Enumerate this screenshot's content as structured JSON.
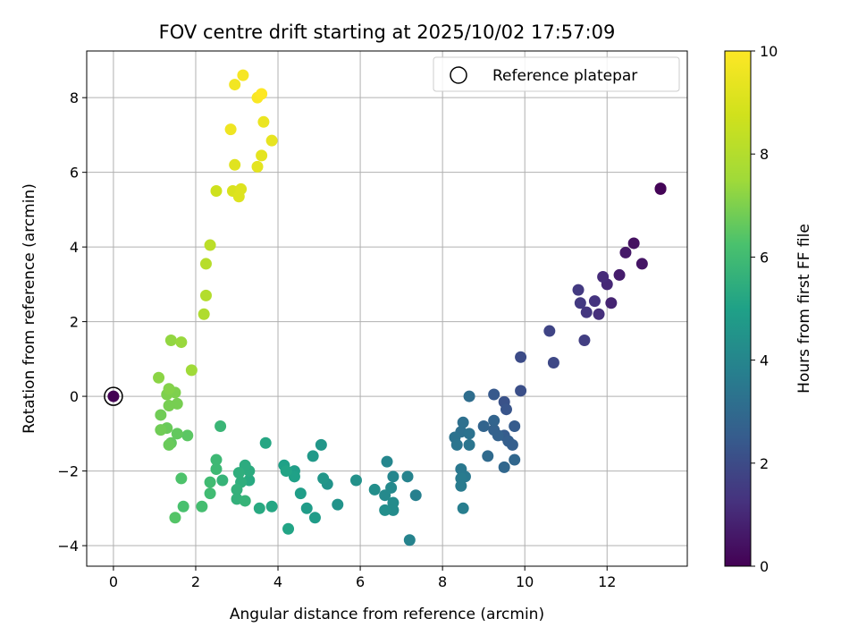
{
  "chart_data": {
    "type": "scatter",
    "title": "FOV centre drift starting at 2025/10/02 17:57:09",
    "xlabel": "Angular distance from reference (arcmin)",
    "ylabel": "Rotation from reference (arcmin)",
    "xlim": [
      -0.65,
      13.95
    ],
    "ylim": [
      -4.55,
      9.25
    ],
    "xticks": [
      0,
      2,
      4,
      6,
      8,
      10,
      12
    ],
    "yticks": [
      -4,
      -2,
      0,
      2,
      4,
      6,
      8
    ],
    "grid": true,
    "legend": {
      "placement": "top-right",
      "entries": [
        "Reference platepar"
      ]
    },
    "colorbar": {
      "label": "Hours from first FF file",
      "colormap": "viridis",
      "range": [
        0,
        10
      ],
      "ticks": [
        0,
        2,
        4,
        6,
        8,
        10
      ]
    },
    "reference_point": {
      "x": 0,
      "y": 0,
      "c": 0
    },
    "points": [
      {
        "x": 13.3,
        "y": 5.55,
        "c": 0.0
      },
      {
        "x": 13.3,
        "y": 5.57,
        "c": 0.1
      },
      {
        "x": 12.65,
        "y": 4.1,
        "c": 0.4
      },
      {
        "x": 12.85,
        "y": 3.55,
        "c": 0.5
      },
      {
        "x": 12.45,
        "y": 3.85,
        "c": 0.6
      },
      {
        "x": 12.3,
        "y": 3.25,
        "c": 0.7
      },
      {
        "x": 12.1,
        "y": 2.5,
        "c": 0.9
      },
      {
        "x": 12.0,
        "y": 3.0,
        "c": 1.0
      },
      {
        "x": 11.9,
        "y": 3.2,
        "c": 1.1
      },
      {
        "x": 11.8,
        "y": 2.2,
        "c": 1.2
      },
      {
        "x": 11.7,
        "y": 2.55,
        "c": 1.3
      },
      {
        "x": 11.5,
        "y": 2.25,
        "c": 1.4
      },
      {
        "x": 11.35,
        "y": 2.5,
        "c": 1.5
      },
      {
        "x": 11.3,
        "y": 2.85,
        "c": 1.5
      },
      {
        "x": 11.45,
        "y": 1.5,
        "c": 1.6
      },
      {
        "x": 10.6,
        "y": 1.75,
        "c": 1.8
      },
      {
        "x": 10.7,
        "y": 0.9,
        "c": 1.9
      },
      {
        "x": 9.9,
        "y": 1.05,
        "c": 2.0
      },
      {
        "x": 9.9,
        "y": 0.15,
        "c": 2.1
      },
      {
        "x": 9.5,
        "y": -0.15,
        "c": 2.2
      },
      {
        "x": 9.55,
        "y": -0.35,
        "c": 2.3
      },
      {
        "x": 9.25,
        "y": 0.05,
        "c": 2.4
      },
      {
        "x": 9.75,
        "y": -0.8,
        "c": 2.5
      },
      {
        "x": 9.5,
        "y": -1.05,
        "c": 2.5
      },
      {
        "x": 9.6,
        "y": -1.2,
        "c": 2.6
      },
      {
        "x": 9.7,
        "y": -1.3,
        "c": 2.6
      },
      {
        "x": 9.35,
        "y": -1.05,
        "c": 2.7
      },
      {
        "x": 9.25,
        "y": -0.9,
        "c": 2.7
      },
      {
        "x": 9.25,
        "y": -0.65,
        "c": 2.8
      },
      {
        "x": 9.0,
        "y": -0.8,
        "c": 2.8
      },
      {
        "x": 9.75,
        "y": -1.7,
        "c": 2.9
      },
      {
        "x": 9.5,
        "y": -1.9,
        "c": 2.9
      },
      {
        "x": 9.1,
        "y": -1.6,
        "c": 3.0
      },
      {
        "x": 8.65,
        "y": 0.0,
        "c": 3.1
      },
      {
        "x": 8.5,
        "y": -0.7,
        "c": 3.2
      },
      {
        "x": 8.45,
        "y": -0.95,
        "c": 3.2
      },
      {
        "x": 8.65,
        "y": -1.0,
        "c": 3.3
      },
      {
        "x": 8.3,
        "y": -1.1,
        "c": 3.3
      },
      {
        "x": 8.35,
        "y": -1.3,
        "c": 3.4
      },
      {
        "x": 8.65,
        "y": -1.3,
        "c": 3.4
      },
      {
        "x": 8.45,
        "y": -1.95,
        "c": 3.5
      },
      {
        "x": 8.55,
        "y": -2.15,
        "c": 3.5
      },
      {
        "x": 8.45,
        "y": -2.2,
        "c": 3.6
      },
      {
        "x": 8.45,
        "y": -2.4,
        "c": 3.6
      },
      {
        "x": 8.5,
        "y": -3.0,
        "c": 3.7
      },
      {
        "x": 7.35,
        "y": -2.65,
        "c": 3.8
      },
      {
        "x": 7.15,
        "y": -2.15,
        "c": 3.9
      },
      {
        "x": 7.2,
        "y": -3.85,
        "c": 3.9
      },
      {
        "x": 6.8,
        "y": -2.15,
        "c": 4.0
      },
      {
        "x": 6.65,
        "y": -1.75,
        "c": 4.0
      },
      {
        "x": 6.75,
        "y": -2.45,
        "c": 4.1
      },
      {
        "x": 6.6,
        "y": -2.65,
        "c": 4.1
      },
      {
        "x": 6.8,
        "y": -2.85,
        "c": 4.2
      },
      {
        "x": 6.8,
        "y": -3.05,
        "c": 4.2
      },
      {
        "x": 6.6,
        "y": -3.05,
        "c": 4.3
      },
      {
        "x": 6.35,
        "y": -2.5,
        "c": 4.3
      },
      {
        "x": 5.9,
        "y": -2.25,
        "c": 4.4
      },
      {
        "x": 5.45,
        "y": -2.9,
        "c": 4.5
      },
      {
        "x": 5.2,
        "y": -2.35,
        "c": 4.5
      },
      {
        "x": 5.1,
        "y": -2.2,
        "c": 4.6
      },
      {
        "x": 5.05,
        "y": -1.3,
        "c": 4.6
      },
      {
        "x": 4.85,
        "y": -1.6,
        "c": 4.7
      },
      {
        "x": 4.9,
        "y": -3.25,
        "c": 4.8
      },
      {
        "x": 4.7,
        "y": -3.0,
        "c": 4.8
      },
      {
        "x": 4.55,
        "y": -2.6,
        "c": 4.9
      },
      {
        "x": 4.4,
        "y": -2.0,
        "c": 4.9
      },
      {
        "x": 4.4,
        "y": -2.15,
        "c": 5.0
      },
      {
        "x": 4.15,
        "y": -1.85,
        "c": 5.0
      },
      {
        "x": 4.2,
        "y": -2.0,
        "c": 5.1
      },
      {
        "x": 4.25,
        "y": -3.55,
        "c": 5.1
      },
      {
        "x": 3.85,
        "y": -2.95,
        "c": 5.2
      },
      {
        "x": 3.7,
        "y": -1.25,
        "c": 5.2
      },
      {
        "x": 3.55,
        "y": -3.0,
        "c": 5.3
      },
      {
        "x": 3.3,
        "y": -2.25,
        "c": 5.3
      },
      {
        "x": 3.3,
        "y": -2.0,
        "c": 5.4
      },
      {
        "x": 3.2,
        "y": -1.85,
        "c": 5.4
      },
      {
        "x": 3.05,
        "y": -2.05,
        "c": 5.5
      },
      {
        "x": 3.1,
        "y": -2.3,
        "c": 5.5
      },
      {
        "x": 3.0,
        "y": -2.5,
        "c": 5.6
      },
      {
        "x": 3.0,
        "y": -2.75,
        "c": 5.6
      },
      {
        "x": 3.2,
        "y": -2.8,
        "c": 5.7
      },
      {
        "x": 2.65,
        "y": -2.25,
        "c": 5.7
      },
      {
        "x": 2.6,
        "y": -0.8,
        "c": 5.8
      },
      {
        "x": 2.5,
        "y": -1.7,
        "c": 5.9
      },
      {
        "x": 2.5,
        "y": -1.95,
        "c": 5.9
      },
      {
        "x": 2.35,
        "y": -2.3,
        "c": 6.0
      },
      {
        "x": 2.35,
        "y": -2.6,
        "c": 6.0
      },
      {
        "x": 2.15,
        "y": -2.95,
        "c": 6.1
      },
      {
        "x": 1.7,
        "y": -2.95,
        "c": 6.2
      },
      {
        "x": 1.65,
        "y": -2.2,
        "c": 6.3
      },
      {
        "x": 1.5,
        "y": -3.25,
        "c": 6.4
      },
      {
        "x": 1.8,
        "y": -1.05,
        "c": 6.5
      },
      {
        "x": 1.55,
        "y": -1.0,
        "c": 6.6
      },
      {
        "x": 1.4,
        "y": -1.25,
        "c": 6.6
      },
      {
        "x": 1.35,
        "y": -1.3,
        "c": 6.7
      },
      {
        "x": 1.3,
        "y": -0.85,
        "c": 6.7
      },
      {
        "x": 1.15,
        "y": -0.9,
        "c": 6.8
      },
      {
        "x": 1.15,
        "y": -0.5,
        "c": 6.8
      },
      {
        "x": 1.55,
        "y": -0.2,
        "c": 6.9
      },
      {
        "x": 1.35,
        "y": -0.25,
        "c": 6.9
      },
      {
        "x": 1.5,
        "y": 0.1,
        "c": 7.0
      },
      {
        "x": 1.3,
        "y": 0.05,
        "c": 7.0
      },
      {
        "x": 1.35,
        "y": 0.2,
        "c": 7.1
      },
      {
        "x": 1.1,
        "y": 0.5,
        "c": 7.2
      },
      {
        "x": 1.4,
        "y": 1.5,
        "c": 7.3
      },
      {
        "x": 1.65,
        "y": 1.45,
        "c": 7.4
      },
      {
        "x": 1.9,
        "y": 0.7,
        "c": 7.5
      },
      {
        "x": 2.2,
        "y": 2.2,
        "c": 7.9
      },
      {
        "x": 2.25,
        "y": 2.7,
        "c": 8.0
      },
      {
        "x": 2.25,
        "y": 3.55,
        "c": 8.1
      },
      {
        "x": 2.35,
        "y": 4.05,
        "c": 8.2
      },
      {
        "x": 2.5,
        "y": 5.5,
        "c": 8.7
      },
      {
        "x": 2.9,
        "y": 5.5,
        "c": 9.0
      },
      {
        "x": 3.05,
        "y": 5.35,
        "c": 9.1
      },
      {
        "x": 3.1,
        "y": 5.55,
        "c": 9.1
      },
      {
        "x": 2.95,
        "y": 6.2,
        "c": 9.2
      },
      {
        "x": 3.5,
        "y": 6.15,
        "c": 9.3
      },
      {
        "x": 3.6,
        "y": 6.45,
        "c": 9.3
      },
      {
        "x": 3.85,
        "y": 6.85,
        "c": 9.4
      },
      {
        "x": 3.65,
        "y": 7.35,
        "c": 9.5
      },
      {
        "x": 2.85,
        "y": 7.15,
        "c": 9.6
      },
      {
        "x": 2.95,
        "y": 8.35,
        "c": 9.7
      },
      {
        "x": 3.15,
        "y": 8.6,
        "c": 9.8
      },
      {
        "x": 3.5,
        "y": 8.0,
        "c": 9.9
      },
      {
        "x": 3.6,
        "y": 8.1,
        "c": 10.0
      }
    ]
  }
}
